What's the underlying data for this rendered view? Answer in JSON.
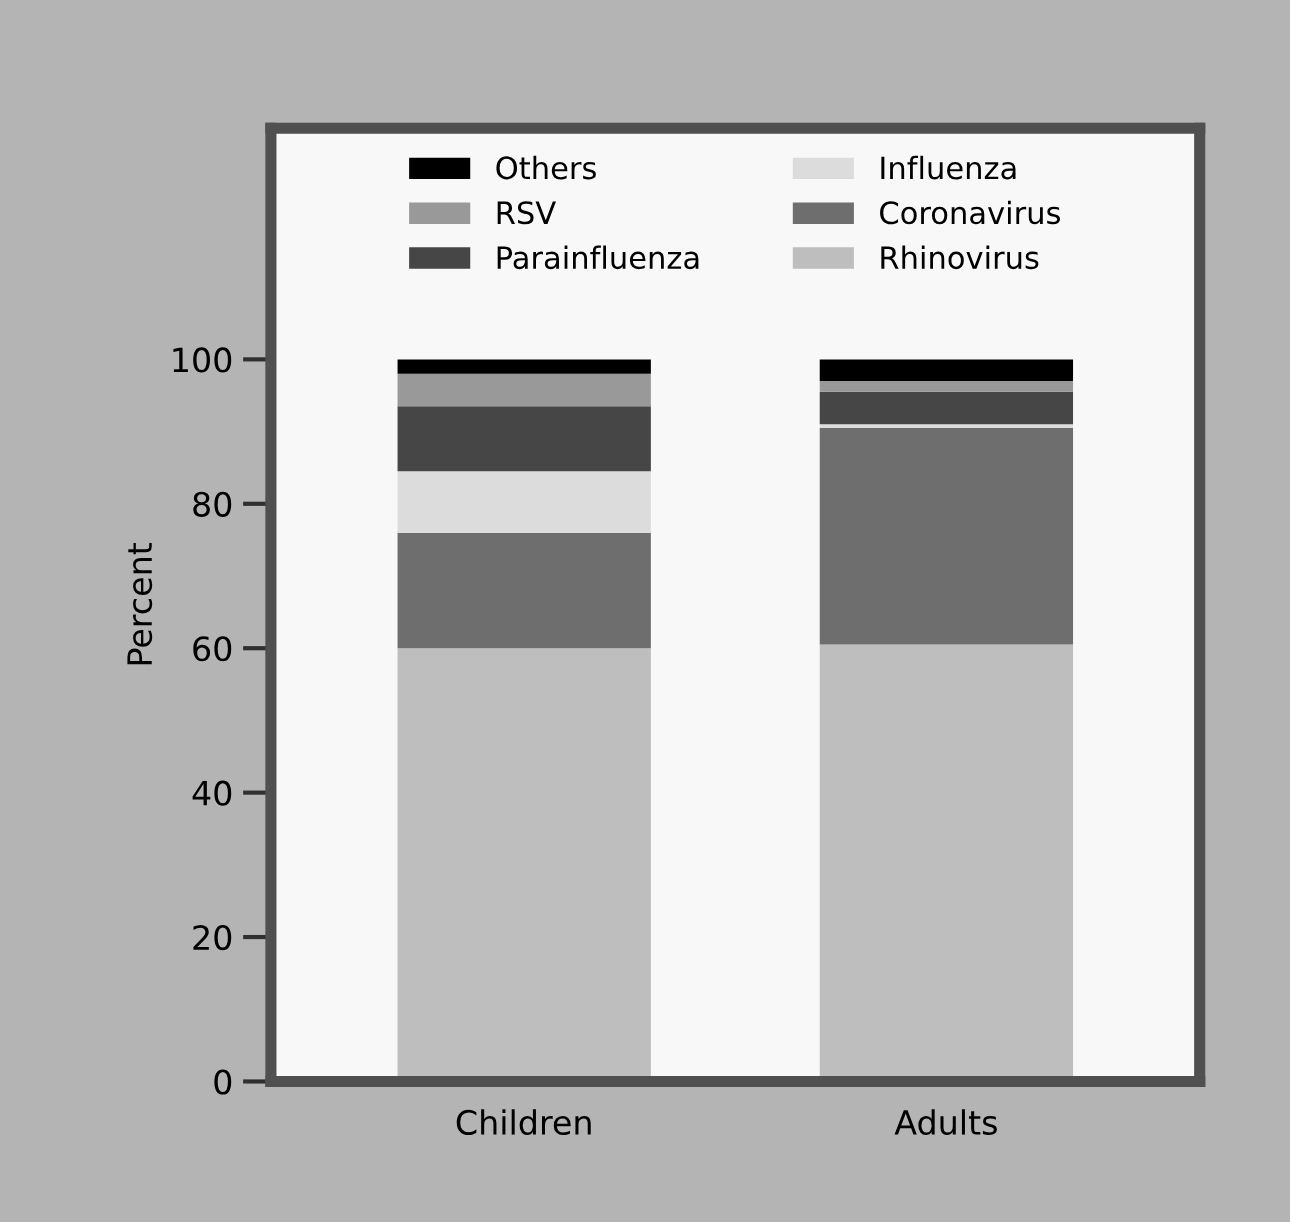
{
  "chart_data": {
    "type": "bar",
    "stacked": true,
    "ylabel": "Percent",
    "categories": [
      "Children",
      "Adults"
    ],
    "series": [
      {
        "name": "Rhinovirus",
        "color": "#bebebe",
        "values": [
          60,
          60.5
        ]
      },
      {
        "name": "Coronavirus",
        "color": "#6e6e6e",
        "values": [
          16,
          30
        ]
      },
      {
        "name": "Influenza",
        "color": "#dcdcdc",
        "values": [
          8.5,
          0.5
        ]
      },
      {
        "name": "Parainfluenza",
        "color": "#464646",
        "values": [
          9,
          4.5
        ]
      },
      {
        "name": "RSV",
        "color": "#999999",
        "values": [
          4.5,
          1.5
        ]
      },
      {
        "name": "Others",
        "color": "#000000",
        "values": [
          2,
          3
        ]
      }
    ],
    "ylim": [
      0,
      132
    ],
    "yticks": [
      0,
      20,
      40,
      60,
      80,
      100
    ],
    "grid": false,
    "legend": "top"
  }
}
